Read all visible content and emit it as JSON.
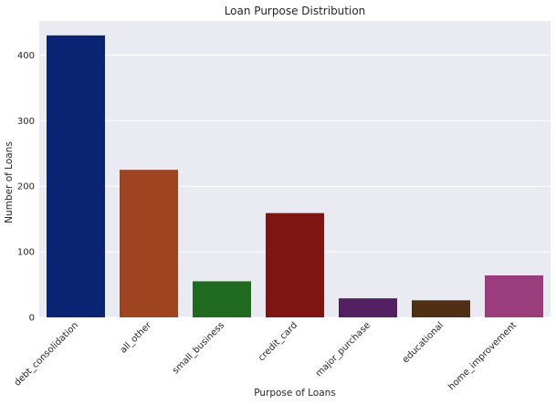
{
  "chart_data": {
    "type": "bar",
    "title": "Loan Purpose Distribution",
    "xlabel": "Purpose of Loans",
    "ylabel": "Number of Loans",
    "categories": [
      "debt_consolidation",
      "all_other",
      "small_business",
      "credit_card",
      "major_purchase",
      "educational",
      "home_improvement"
    ],
    "values": [
      430,
      225,
      55,
      159,
      29,
      26,
      64
    ],
    "colors": [
      "#0b2373",
      "#9e4420",
      "#1f6a1f",
      "#7e1512",
      "#532162",
      "#503014",
      "#9b3c7d"
    ],
    "ylim": [
      0,
      452
    ],
    "yticks": [
      0,
      100,
      200,
      300,
      400
    ],
    "grid": true,
    "plot_background": "#eaeaf2",
    "legend": "none"
  }
}
